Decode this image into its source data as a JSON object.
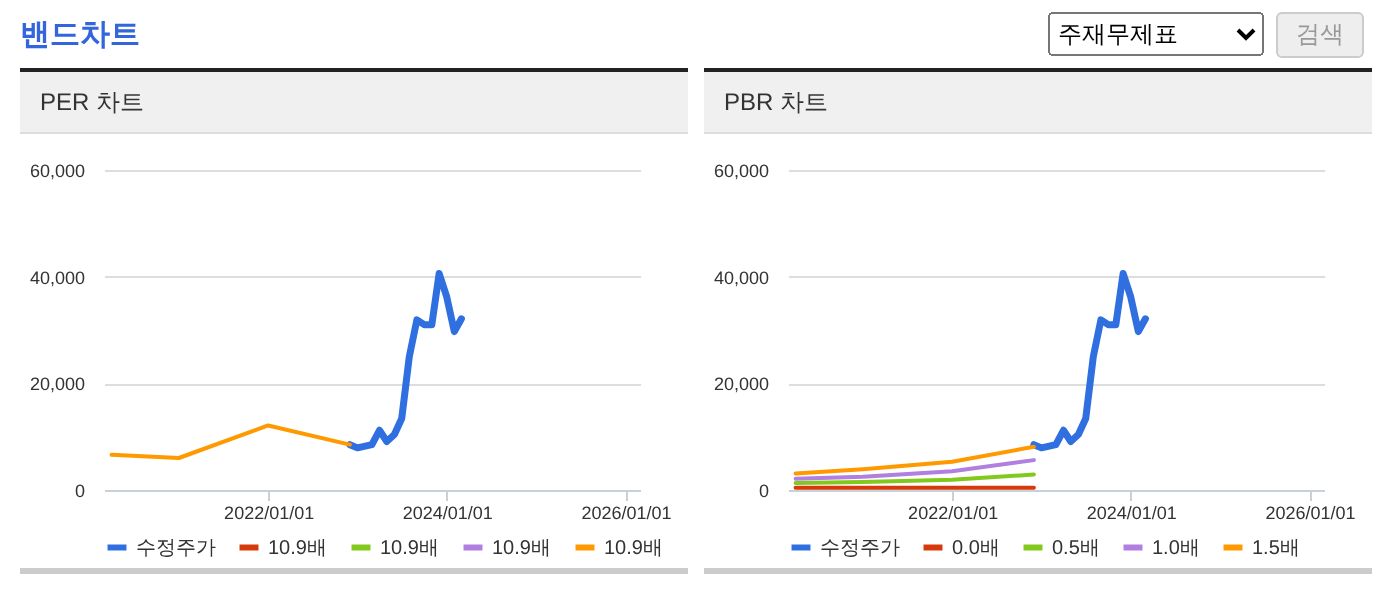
{
  "chart_data": [
    {
      "type": "other",
      "title": "밴드차트",
      "annotations": [
        "주재무제표",
        "검색"
      ]
    },
    {
      "type": "line",
      "title": "PER 차트",
      "xlim": [
        "2020-03",
        "2026-03"
      ],
      "xticks": [
        {
          "value": "2022-01-01",
          "label": "2022/01/01"
        },
        {
          "value": "2024-01-01",
          "label": "2024/01/01"
        },
        {
          "value": "2026-01-01",
          "label": "2026/01/01"
        }
      ],
      "ylim": [
        0,
        60000
      ],
      "yticks": [
        0,
        {
          "value": 20000,
          "label": "20,000"
        },
        {
          "value": 40000,
          "label": "40,000"
        },
        {
          "value": 60000,
          "label": "60,000"
        }
      ],
      "grid": "y",
      "legend": "bottom",
      "series": [
        {
          "name": "수정주가",
          "color": "#2f6fdf",
          "x": [
            "2022-12",
            "2023-01",
            "2023-03",
            "2023-04",
            "2023-05",
            "2023-06",
            "2023-07",
            "2023-08",
            "2023-09",
            "2023-10",
            "2023-11",
            "2023-12",
            "2024-01",
            "2024-02",
            "2024-03"
          ],
          "values": [
            8500,
            7900,
            8500,
            11200,
            9100,
            10400,
            13400,
            25000,
            31900,
            31000,
            31000,
            40600,
            36200,
            29700,
            32100
          ]
        },
        {
          "name": "10.9배",
          "color": "#d63a0a",
          "values": [
            null,
            null,
            null,
            null
          ]
        },
        {
          "name": "10.9배",
          "color": "#82c91e",
          "values": [
            null,
            null,
            null,
            null
          ]
        },
        {
          "name": "10.9배",
          "color": "#b07fe0",
          "values": [
            null,
            null,
            null,
            null
          ]
        },
        {
          "name": "10.9배",
          "color": "#ff9900",
          "x": [
            "2020-04",
            "2021-01",
            "2022-01",
            "2022-12"
          ],
          "values": [
            6600,
            6000,
            12100,
            8500
          ]
        }
      ]
    },
    {
      "type": "line",
      "title": "PBR 차트",
      "xlim": [
        "2020-03",
        "2026-03"
      ],
      "xticks": [
        {
          "value": "2022-01-01",
          "label": "2022/01/01"
        },
        {
          "value": "2024-01-01",
          "label": "2024/01/01"
        },
        {
          "value": "2026-01-01",
          "label": "2026/01/01"
        }
      ],
      "ylim": [
        0,
        60000
      ],
      "yticks": [
        0,
        {
          "value": 20000,
          "label": "20,000"
        },
        {
          "value": 40000,
          "label": "40,000"
        },
        {
          "value": 60000,
          "label": "60,000"
        }
      ],
      "grid": "y",
      "legend": "bottom",
      "series": [
        {
          "name": "수정주가",
          "color": "#2f6fdf",
          "x": [
            "2022-12",
            "2023-01",
            "2023-03",
            "2023-04",
            "2023-05",
            "2023-06",
            "2023-07",
            "2023-08",
            "2023-09",
            "2023-10",
            "2023-11",
            "2023-12",
            "2024-01",
            "2024-02",
            "2024-03"
          ],
          "values": [
            8500,
            7900,
            8500,
            11200,
            9100,
            10400,
            13400,
            25000,
            31900,
            31000,
            31000,
            40600,
            36200,
            29700,
            32100
          ]
        },
        {
          "name": "0.0배",
          "color": "#d63a0a",
          "x": [
            "2020-04",
            "2021-01",
            "2022-01",
            "2022-12"
          ],
          "values": [
            400,
            400,
            400,
            400
          ]
        },
        {
          "name": "0.5배",
          "color": "#82c91e",
          "x": [
            "2020-04",
            "2021-01",
            "2022-01",
            "2022-12"
          ],
          "values": [
            1300,
            1500,
            1900,
            2900
          ]
        },
        {
          "name": "1.0배",
          "color": "#b07fe0",
          "x": [
            "2020-04",
            "2021-01",
            "2022-01",
            "2022-12"
          ],
          "values": [
            2100,
            2500,
            3500,
            5600
          ]
        },
        {
          "name": "1.5배",
          "color": "#ff9900",
          "x": [
            "2020-04",
            "2021-01",
            "2022-01",
            "2022-12"
          ],
          "values": [
            3100,
            3900,
            5300,
            8100
          ]
        }
      ]
    }
  ]
}
